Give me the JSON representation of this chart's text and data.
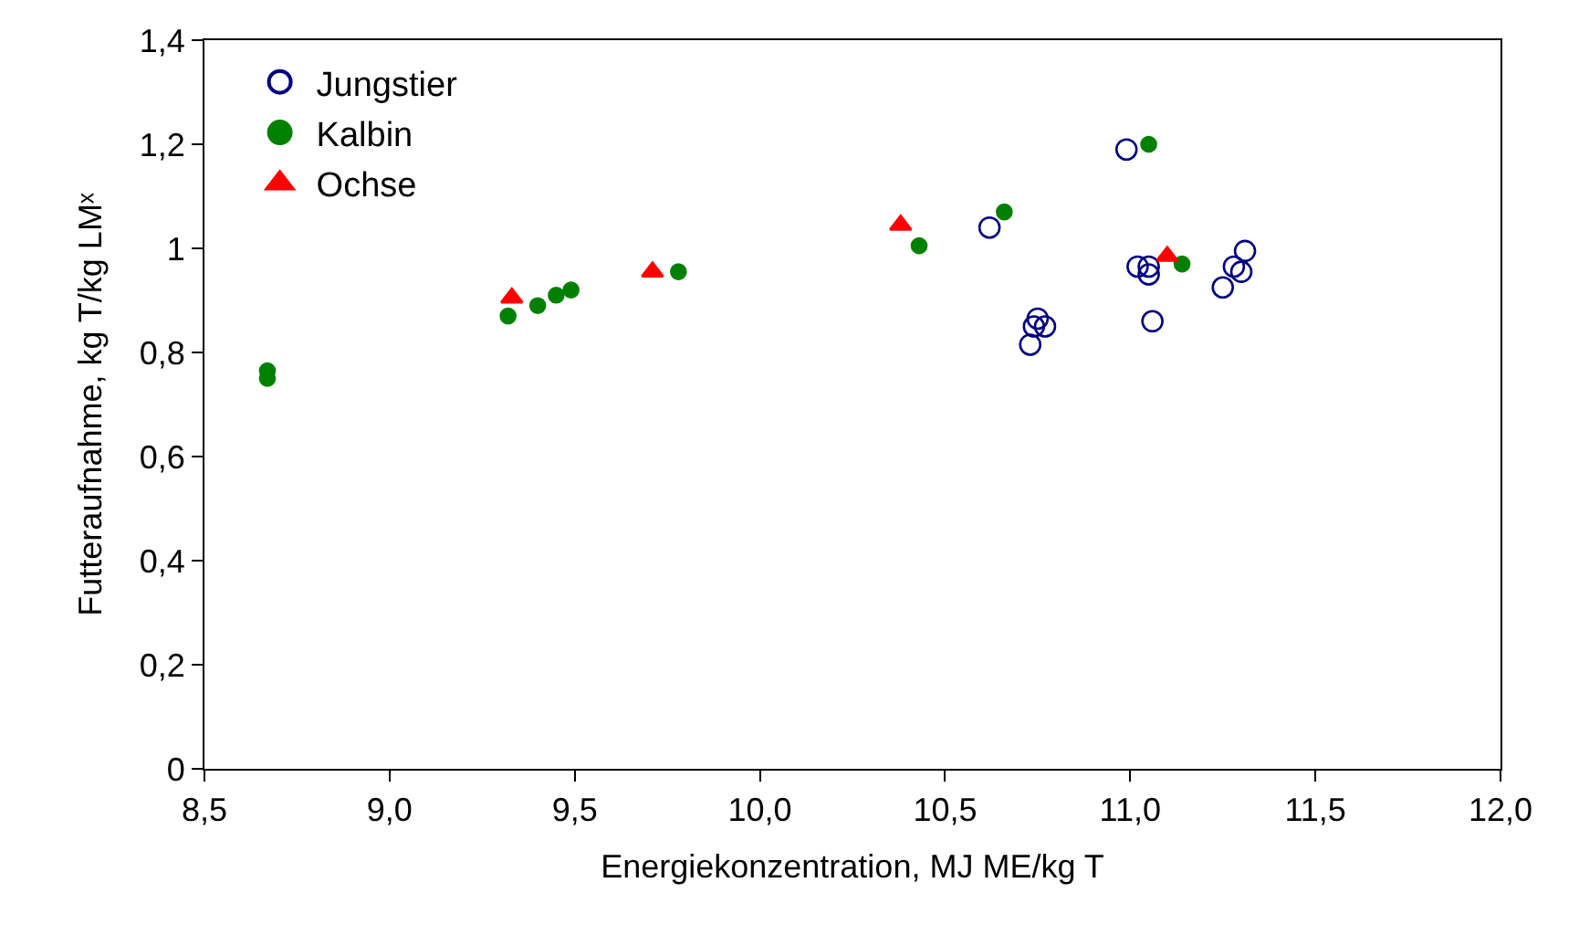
{
  "chart_data": {
    "type": "scatter",
    "xlabel": "Energiekonzentration, MJ ME/kg T",
    "ylabel": "Futteraufnahme, kg T/kg LMˣ",
    "series": [
      {
        "name": "Jungstier",
        "color": "#000080",
        "marker": "circle-open",
        "x": [
          10.62,
          10.99,
          10.73,
          10.75,
          10.74,
          10.77,
          11.02,
          11.05,
          11.05,
          11.06,
          11.25,
          11.28,
          11.31,
          11.3
        ],
        "values": [
          1.04,
          1.19,
          0.815,
          0.865,
          0.85,
          0.85,
          0.965,
          0.965,
          0.95,
          0.86,
          0.925,
          0.965,
          0.995,
          0.955
        ]
      },
      {
        "name": "Kalbin",
        "color": "#008000",
        "marker": "circle",
        "x": [
          8.67,
          8.67,
          9.32,
          9.4,
          9.45,
          9.49,
          9.78,
          10.43,
          10.66,
          11.05,
          11.14
        ],
        "values": [
          0.765,
          0.75,
          0.87,
          0.89,
          0.91,
          0.92,
          0.955,
          1.005,
          1.07,
          1.2,
          0.97
        ]
      },
      {
        "name": "Ochse",
        "color": "#ff0000",
        "marker": "triangle",
        "x": [
          9.33,
          9.71,
          10.38,
          11.1
        ],
        "values": [
          0.905,
          0.955,
          1.045,
          0.985
        ]
      }
    ],
    "xlim": [
      8.5,
      12.0
    ],
    "xticks": [
      {
        "value": 8.5,
        "label": "8,5"
      },
      {
        "value": 9.0,
        "label": "9,0"
      },
      {
        "value": 9.5,
        "label": "9,5"
      },
      {
        "value": 10.0,
        "label": "10,0"
      },
      {
        "value": 10.5,
        "label": "10,5"
      },
      {
        "value": 11.0,
        "label": "11,0"
      },
      {
        "value": 11.5,
        "label": "11,5"
      },
      {
        "value": 12.0,
        "label": "12,0"
      }
    ],
    "ylim": [
      0,
      1.4
    ],
    "yticks": [
      0,
      {
        "value": 0.2,
        "label": "0,2"
      },
      {
        "value": 0.4,
        "label": "0,4"
      },
      {
        "value": 0.6,
        "label": "0,6"
      },
      {
        "value": 0.8,
        "label": "0,8"
      },
      1,
      {
        "value": 1.2,
        "label": "1,2"
      },
      {
        "value": 1.4,
        "label": "1,4"
      }
    ],
    "legend": "top left"
  }
}
